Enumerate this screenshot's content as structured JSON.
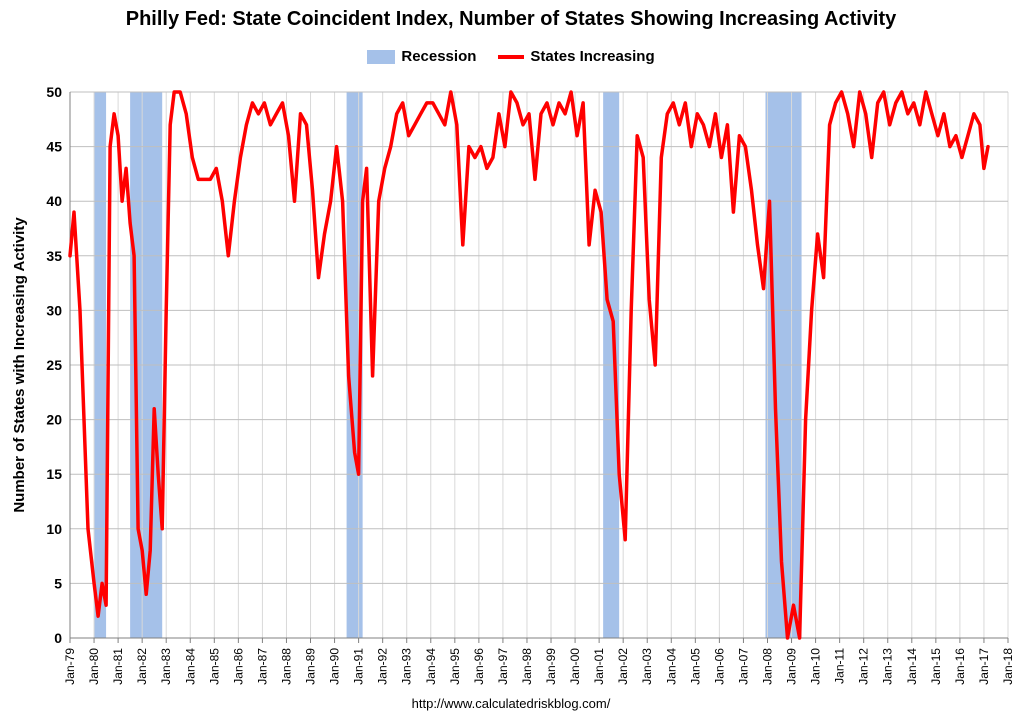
{
  "chart_data": {
    "type": "line",
    "title": "Philly Fed: State Coincident Index, Number of States Showing Increasing Activity",
    "ylabel": "Number of States with Increasing Activity",
    "xlabel": "",
    "ylim": [
      0,
      50
    ],
    "yticks": [
      0,
      5,
      10,
      15,
      20,
      25,
      30,
      35,
      40,
      45,
      50
    ],
    "xlim": [
      "1979-01",
      "2018-01"
    ],
    "xtick_labels": [
      "Jan-79",
      "Jan-80",
      "Jan-81",
      "Jan-82",
      "Jan-83",
      "Jan-84",
      "Jan-85",
      "Jan-86",
      "Jan-87",
      "Jan-88",
      "Jan-89",
      "Jan-90",
      "Jan-91",
      "Jan-92",
      "Jan-93",
      "Jan-94",
      "Jan-95",
      "Jan-96",
      "Jan-97",
      "Jan-98",
      "Jan-99",
      "Jan-00",
      "Jan-01",
      "Jan-02",
      "Jan-03",
      "Jan-04",
      "Jan-05",
      "Jan-06",
      "Jan-07",
      "Jan-08",
      "Jan-09",
      "Jan-10",
      "Jan-11",
      "Jan-12",
      "Jan-13",
      "Jan-14",
      "Jan-15",
      "Jan-16",
      "Jan-17",
      "Jan-18"
    ],
    "grid": true,
    "legend_position": "top",
    "series": [
      {
        "name": "States Increasing",
        "color": "#ff0000",
        "x": [
          "1979-01",
          "1979-03",
          "1979-06",
          "1979-10",
          "1980-01",
          "1980-03",
          "1980-05",
          "1980-07",
          "1980-09",
          "1980-11",
          "1981-01",
          "1981-03",
          "1981-05",
          "1981-07",
          "1981-09",
          "1981-11",
          "1982-01",
          "1982-03",
          "1982-05",
          "1982-07",
          "1982-09",
          "1982-11",
          "1983-01",
          "1983-03",
          "1983-05",
          "1983-08",
          "1983-11",
          "1984-02",
          "1984-05",
          "1984-08",
          "1984-11",
          "1985-02",
          "1985-05",
          "1985-08",
          "1985-11",
          "1986-02",
          "1986-05",
          "1986-08",
          "1986-11",
          "1987-02",
          "1987-05",
          "1987-08",
          "1987-11",
          "1988-02",
          "1988-05",
          "1988-08",
          "1988-11",
          "1989-02",
          "1989-05",
          "1989-08",
          "1989-11",
          "1990-02",
          "1990-05",
          "1990-08",
          "1990-11",
          "1991-01",
          "1991-03",
          "1991-05",
          "1991-08",
          "1991-11",
          "1992-02",
          "1992-05",
          "1992-08",
          "1992-11",
          "1993-02",
          "1993-05",
          "1993-08",
          "1993-11",
          "1994-02",
          "1994-05",
          "1994-08",
          "1994-11",
          "1995-02",
          "1995-05",
          "1995-08",
          "1995-11",
          "1996-02",
          "1996-05",
          "1996-08",
          "1996-11",
          "1997-02",
          "1997-05",
          "1997-08",
          "1997-11",
          "1998-02",
          "1998-05",
          "1998-08",
          "1998-11",
          "1999-02",
          "1999-05",
          "1999-08",
          "1999-11",
          "2000-02",
          "2000-05",
          "2000-08",
          "2000-11",
          "2001-02",
          "2001-05",
          "2001-08",
          "2001-11",
          "2002-02",
          "2002-05",
          "2002-08",
          "2002-11",
          "2003-02",
          "2003-05",
          "2003-08",
          "2003-11",
          "2004-02",
          "2004-05",
          "2004-08",
          "2004-11",
          "2005-02",
          "2005-05",
          "2005-08",
          "2005-11",
          "2006-02",
          "2006-05",
          "2006-08",
          "2006-11",
          "2007-02",
          "2007-05",
          "2007-08",
          "2007-11",
          "2008-02",
          "2008-05",
          "2008-08",
          "2008-11",
          "2009-02",
          "2009-05",
          "2009-08",
          "2009-11",
          "2010-02",
          "2010-05",
          "2010-08",
          "2010-11",
          "2011-02",
          "2011-05",
          "2011-08",
          "2011-11",
          "2012-02",
          "2012-05",
          "2012-08",
          "2012-11",
          "2013-02",
          "2013-05",
          "2013-08",
          "2013-11",
          "2014-02",
          "2014-05",
          "2014-08",
          "2014-11",
          "2015-02",
          "2015-05",
          "2015-08",
          "2015-11",
          "2016-02",
          "2016-05",
          "2016-08",
          "2016-11",
          "2017-01",
          "2017-03"
        ],
        "values": [
          35,
          39,
          30,
          10,
          5,
          2,
          5,
          3,
          45,
          48,
          46,
          40,
          43,
          38,
          35,
          10,
          8,
          4,
          8,
          21,
          15,
          10,
          30,
          47,
          50,
          50,
          48,
          44,
          42,
          42,
          42,
          43,
          40,
          35,
          40,
          44,
          47,
          49,
          48,
          49,
          47,
          48,
          49,
          46,
          40,
          48,
          47,
          41,
          33,
          37,
          40,
          45,
          40,
          24,
          17,
          15,
          40,
          43,
          24,
          40,
          43,
          45,
          48,
          49,
          46,
          47,
          48,
          49,
          49,
          48,
          47,
          50,
          47,
          36,
          45,
          44,
          45,
          43,
          44,
          48,
          45,
          50,
          49,
          47,
          48,
          42,
          48,
          49,
          47,
          49,
          48,
          50,
          46,
          49,
          36,
          41,
          39,
          31,
          29,
          15,
          9,
          30,
          46,
          44,
          31,
          25,
          44,
          48,
          49,
          47,
          49,
          45,
          48,
          47,
          45,
          48,
          44,
          47,
          39,
          46,
          45,
          41,
          36,
          32,
          40,
          21,
          7,
          0,
          3,
          0,
          20,
          30,
          37,
          33,
          47,
          49,
          50,
          48,
          45,
          50,
          48,
          44,
          49,
          50,
          47,
          49,
          50,
          48,
          49,
          47,
          50,
          48,
          46,
          48,
          45,
          46,
          44,
          46,
          48,
          47,
          43,
          45
        ]
      }
    ],
    "recessions": [
      {
        "start": "1980-01",
        "end": "1980-07"
      },
      {
        "start": "1981-07",
        "end": "1982-11"
      },
      {
        "start": "1990-07",
        "end": "1991-03"
      },
      {
        "start": "2001-03",
        "end": "2001-11"
      },
      {
        "start": "2007-12",
        "end": "2009-06"
      }
    ],
    "recession_color": "#a5c1e9"
  },
  "legend": {
    "recession_label": "Recession",
    "series_label": "States Increasing"
  },
  "footer": {
    "source": "http://www.calculatedriskblog.com/"
  }
}
